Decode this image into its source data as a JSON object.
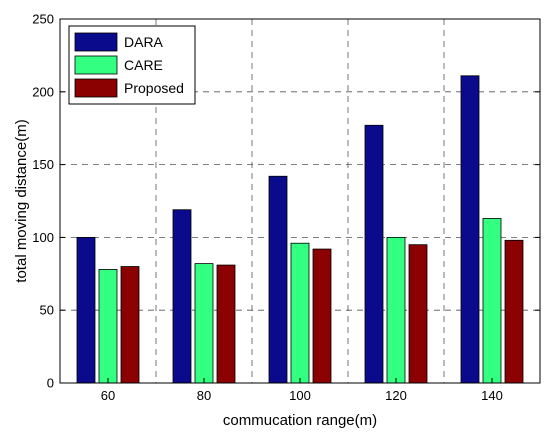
{
  "chart_data": {
    "type": "bar",
    "title": "",
    "xlabel": "commucation range(m)",
    "ylabel": "total moving distance(m)",
    "categories": [
      "60",
      "80",
      "100",
      "120",
      "140"
    ],
    "series": [
      {
        "name": "DARA",
        "color": "#0a0a8c",
        "values": [
          100,
          119,
          142,
          177,
          211
        ]
      },
      {
        "name": "CARE",
        "color": "#33ff80",
        "values": [
          78,
          82,
          96,
          100,
          113
        ]
      },
      {
        "name": "Proposed",
        "color": "#8b0000",
        "values": [
          80,
          81,
          92,
          95,
          98
        ]
      }
    ],
    "ylim": [
      0,
      250
    ],
    "yticks": [
      0,
      50,
      100,
      150,
      200,
      250
    ],
    "grid": true,
    "legend_position": "top-left"
  }
}
